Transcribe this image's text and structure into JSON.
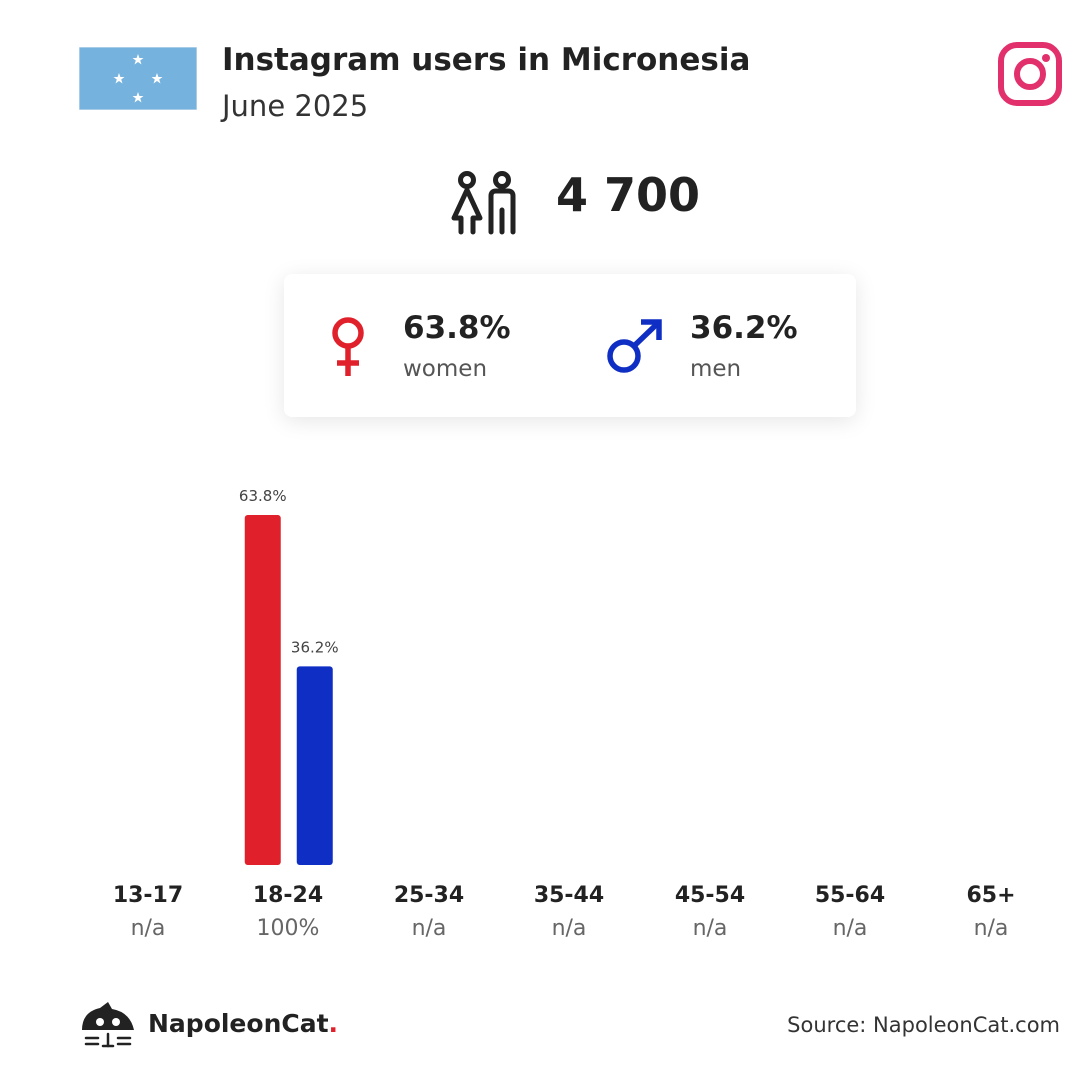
{
  "header": {
    "title": "Instagram users in Micronesia",
    "subtitle": "June 2025",
    "flag_icon": "micronesia-flag",
    "platform_icon": "instagram-icon"
  },
  "total": {
    "icon": "people-icon",
    "value": "4 700"
  },
  "gender": {
    "women": {
      "pct": "63.8%",
      "label": "women",
      "icon": "female-icon",
      "color": "#e0202a"
    },
    "men": {
      "pct": "36.2%",
      "label": "men",
      "icon": "male-icon",
      "color": "#0f2ec3"
    }
  },
  "age_groups": [
    {
      "name": "13-17",
      "share": "n/a"
    },
    {
      "name": "18-24",
      "share": "100%"
    },
    {
      "name": "25-34",
      "share": "n/a"
    },
    {
      "name": "35-44",
      "share": "n/a"
    },
    {
      "name": "45-54",
      "share": "n/a"
    },
    {
      "name": "55-64",
      "share": "n/a"
    },
    {
      "name": "65+",
      "share": "n/a"
    }
  ],
  "chart_data": {
    "type": "bar",
    "categories": [
      "13-17",
      "18-24",
      "25-34",
      "35-44",
      "45-54",
      "55-64",
      "65+"
    ],
    "series": [
      {
        "name": "women",
        "color": "#e0202a",
        "values": [
          null,
          63.8,
          null,
          null,
          null,
          null,
          null
        ],
        "labels": [
          null,
          "63.8%",
          null,
          null,
          null,
          null,
          null
        ]
      },
      {
        "name": "men",
        "color": "#0f2ec3",
        "values": [
          null,
          36.2,
          null,
          null,
          null,
          null,
          null
        ],
        "labels": [
          null,
          "36.2%",
          null,
          null,
          null,
          null,
          null
        ]
      }
    ],
    "ylim": [
      0,
      63.8
    ],
    "grid": false
  },
  "footer": {
    "brand_logo": "napoleoncat-logo",
    "brand_name": "NapoleonCat",
    "brand_dot": ".",
    "source": "Source: NapoleonCat.com"
  }
}
